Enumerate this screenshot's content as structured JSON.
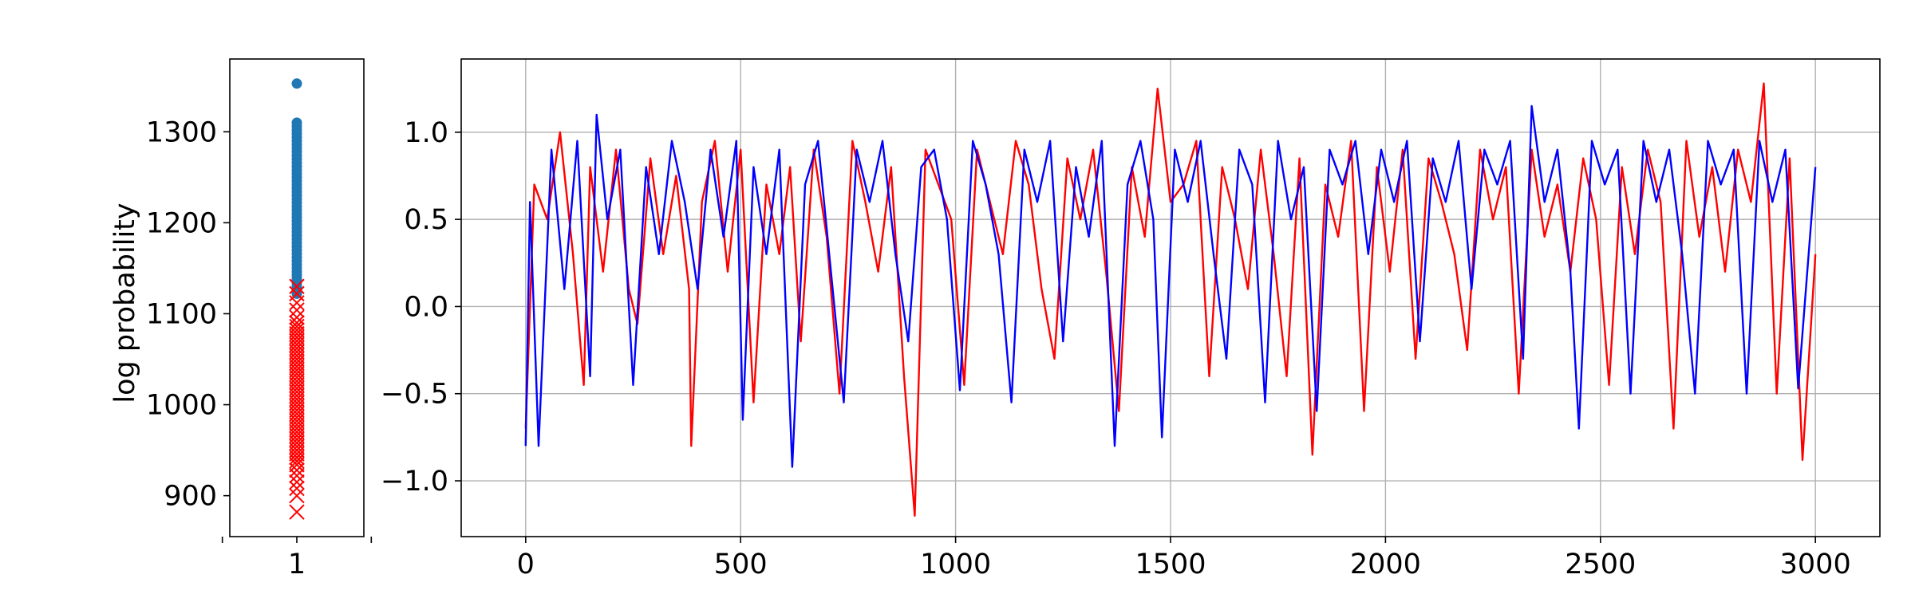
{
  "chart_data": [
    {
      "type": "scatter",
      "ylabel": "log probability",
      "xlabel": "",
      "title": "",
      "x_ticks": [
        1
      ],
      "x_tick_labels": [
        "1"
      ],
      "xlim": [
        0.55,
        1.45
      ],
      "ylim": [
        855,
        1380
      ],
      "y_ticks": [
        900,
        1000,
        1100,
        1200,
        1300
      ],
      "y_tick_labels": [
        "900",
        "1000",
        "1100",
        "1200",
        "1300"
      ],
      "grid": false,
      "series": [
        {
          "marker": "circle",
          "color": "#1f77b4",
          "x": 1,
          "values": [
            1353,
            1310,
            1306,
            1302,
            1298,
            1294,
            1290,
            1286,
            1282,
            1278,
            1274,
            1270,
            1266,
            1262,
            1258,
            1254,
            1250,
            1246,
            1242,
            1238,
            1234,
            1230,
            1226,
            1222,
            1218,
            1214,
            1210,
            1206,
            1202,
            1198,
            1194,
            1190,
            1186,
            1182,
            1178,
            1174,
            1170,
            1166,
            1162,
            1158,
            1154,
            1150,
            1146,
            1142,
            1138,
            1134,
            1130,
            1126,
            1122
          ]
        },
        {
          "marker": "x",
          "color": "#ff0000",
          "x": 1,
          "values": [
            1130,
            1122,
            1112,
            1104,
            1096,
            1090,
            1086,
            1082,
            1078,
            1074,
            1070,
            1066,
            1062,
            1058,
            1054,
            1050,
            1046,
            1042,
            1038,
            1034,
            1030,
            1026,
            1022,
            1018,
            1014,
            1010,
            1006,
            1002,
            998,
            994,
            990,
            986,
            982,
            978,
            974,
            970,
            966,
            962,
            958,
            954,
            950,
            946,
            942,
            938,
            934,
            928,
            922,
            915,
            908,
            900,
            882
          ]
        }
      ]
    },
    {
      "type": "line",
      "title": "",
      "xlabel": "",
      "ylabel": "",
      "xlim": [
        -150,
        3150
      ],
      "ylim": [
        -1.32,
        1.42
      ],
      "x_ticks": [
        0,
        500,
        1000,
        1500,
        2000,
        2500,
        3000
      ],
      "x_tick_labels": [
        "0",
        "500",
        "1000",
        "1500",
        "2000",
        "2500",
        "3000"
      ],
      "y_ticks": [
        -1.0,
        -0.5,
        0.0,
        0.5,
        1.0
      ],
      "y_tick_labels": [
        "−1.0",
        "−0.5",
        "0.0",
        "0.5",
        "1.0"
      ],
      "grid": true,
      "series": [
        {
          "color": "#ff0000",
          "x": [
            0,
            20,
            50,
            80,
            110,
            135,
            150,
            180,
            210,
            240,
            260,
            290,
            320,
            350,
            380,
            385,
            410,
            440,
            470,
            500,
            530,
            560,
            590,
            615,
            640,
            670,
            700,
            730,
            760,
            790,
            820,
            850,
            880,
            905,
            930,
            960,
            990,
            1020,
            1050,
            1080,
            1110,
            1140,
            1170,
            1200,
            1230,
            1260,
            1290,
            1320,
            1350,
            1380,
            1410,
            1440,
            1470,
            1500,
            1530,
            1560,
            1590,
            1620,
            1650,
            1680,
            1710,
            1740,
            1770,
            1800,
            1830,
            1860,
            1890,
            1920,
            1950,
            1980,
            2010,
            2040,
            2070,
            2100,
            2130,
            2160,
            2190,
            2220,
            2250,
            2280,
            2310,
            2340,
            2370,
            2400,
            2430,
            2460,
            2490,
            2520,
            2550,
            2580,
            2610,
            2640,
            2670,
            2700,
            2730,
            2760,
            2790,
            2820,
            2850,
            2880,
            2910,
            2940,
            2970,
            3000
          ],
          "values": [
            -0.7,
            0.7,
            0.5,
            1.0,
            0.3,
            -0.45,
            0.8,
            0.2,
            0.9,
            0.1,
            -0.1,
            0.85,
            0.3,
            0.75,
            0.1,
            -0.8,
            0.6,
            0.95,
            0.2,
            0.9,
            -0.55,
            0.7,
            0.3,
            0.8,
            -0.2,
            0.9,
            0.4,
            -0.5,
            0.95,
            0.6,
            0.2,
            0.8,
            -0.4,
            -1.2,
            0.9,
            0.7,
            0.5,
            -0.45,
            0.9,
            0.6,
            0.3,
            0.95,
            0.7,
            0.1,
            -0.3,
            0.85,
            0.5,
            0.9,
            0.2,
            -0.6,
            0.8,
            0.4,
            1.25,
            0.6,
            0.7,
            0.95,
            -0.4,
            0.8,
            0.5,
            0.1,
            0.9,
            0.3,
            -0.4,
            0.85,
            -0.85,
            0.7,
            0.4,
            0.95,
            -0.6,
            0.8,
            0.2,
            0.9,
            -0.3,
            0.85,
            0.6,
            0.3,
            -0.25,
            0.9,
            0.5,
            0.8,
            -0.5,
            0.9,
            0.4,
            0.7,
            0.2,
            0.85,
            0.5,
            -0.45,
            0.8,
            0.3,
            0.9,
            0.6,
            -0.7,
            0.95,
            0.4,
            0.8,
            0.2,
            0.9,
            0.6,
            1.28,
            -0.5,
            0.85,
            -0.88,
            0.3
          ]
        },
        {
          "color": "#0000ff",
          "x": [
            0,
            10,
            30,
            60,
            90,
            120,
            150,
            165,
            190,
            220,
            250,
            280,
            310,
            340,
            370,
            400,
            430,
            460,
            490,
            505,
            530,
            560,
            590,
            620,
            650,
            680,
            710,
            740,
            770,
            800,
            830,
            860,
            890,
            920,
            950,
            980,
            1010,
            1040,
            1070,
            1100,
            1130,
            1160,
            1190,
            1220,
            1250,
            1280,
            1310,
            1340,
            1370,
            1400,
            1430,
            1460,
            1480,
            1510,
            1540,
            1570,
            1600,
            1630,
            1660,
            1690,
            1720,
            1750,
            1780,
            1810,
            1840,
            1870,
            1900,
            1930,
            1960,
            1990,
            2020,
            2050,
            2080,
            2110,
            2140,
            2170,
            2200,
            2230,
            2260,
            2290,
            2320,
            2340,
            2370,
            2400,
            2430,
            2450,
            2480,
            2510,
            2540,
            2570,
            2600,
            2630,
            2660,
            2690,
            2720,
            2750,
            2780,
            2810,
            2840,
            2870,
            2900,
            2930,
            2960,
            3000
          ],
          "values": [
            -0.8,
            0.6,
            -0.8,
            0.9,
            0.1,
            0.95,
            -0.4,
            1.1,
            0.5,
            0.9,
            -0.45,
            0.8,
            0.3,
            0.95,
            0.6,
            0.1,
            0.9,
            0.4,
            0.95,
            -0.65,
            0.8,
            0.3,
            0.9,
            -0.92,
            0.7,
            0.95,
            0.2,
            -0.55,
            0.9,
            0.6,
            0.95,
            0.3,
            -0.2,
            0.8,
            0.9,
            0.5,
            -0.48,
            0.95,
            0.7,
            0.3,
            -0.55,
            0.9,
            0.6,
            0.95,
            -0.2,
            0.8,
            0.4,
            0.95,
            -0.8,
            0.7,
            0.95,
            0.5,
            -0.75,
            0.9,
            0.6,
            0.95,
            0.3,
            -0.3,
            0.9,
            0.7,
            -0.55,
            0.95,
            0.5,
            0.8,
            -0.6,
            0.9,
            0.7,
            0.95,
            0.3,
            0.9,
            0.6,
            0.95,
            -0.2,
            0.85,
            0.6,
            0.95,
            0.1,
            0.9,
            0.7,
            0.95,
            -0.3,
            1.15,
            0.6,
            0.9,
            0.2,
            -0.7,
            0.95,
            0.7,
            0.9,
            -0.5,
            0.95,
            0.6,
            0.9,
            0.3,
            -0.5,
            0.95,
            0.7,
            0.9,
            -0.5,
            0.95,
            0.6,
            0.9,
            -0.47,
            0.8
          ]
        }
      ]
    }
  ]
}
